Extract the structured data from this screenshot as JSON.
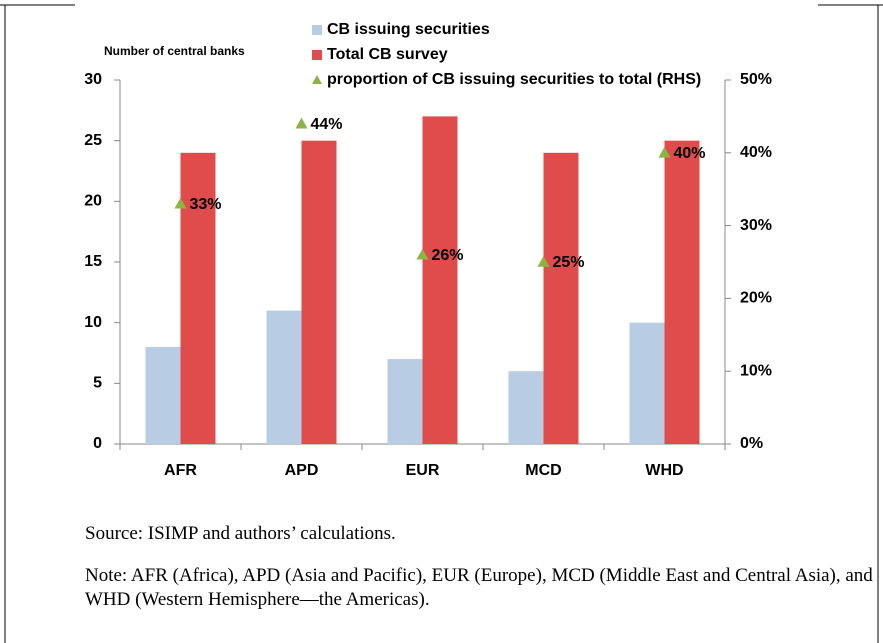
{
  "chart_data": {
    "type": "bar",
    "categories": [
      "AFR",
      "APD",
      "EUR",
      "MCD",
      "WHD"
    ],
    "y_label": "Number of central banks",
    "series": [
      {
        "name": "CB issuing securities",
        "color": "#b8cce4",
        "values": [
          8,
          11,
          7,
          6,
          10
        ]
      },
      {
        "name": "Total CB survey",
        "color": "#e04c4c",
        "values": [
          24,
          25,
          27,
          24,
          25
        ]
      },
      {
        "name": "proportion of CB issuing securities to total (RHS)",
        "type": "scatter",
        "marker": "triangle",
        "color": "#8db343",
        "axis": "y2",
        "values": [
          33,
          44,
          26,
          25,
          40
        ],
        "value_labels": [
          "33%",
          "44%",
          "26%",
          "25%",
          "40%"
        ]
      }
    ],
    "ylim": [
      0,
      30
    ],
    "yticks": [
      0,
      5,
      10,
      15,
      20,
      25,
      30
    ],
    "y2lim": [
      0,
      50
    ],
    "y2ticks": [
      {
        "value": 0,
        "label": "0%"
      },
      {
        "value": 10,
        "label": "10%"
      },
      {
        "value": 20,
        "label": "20%"
      },
      {
        "value": 30,
        "label": "30%"
      },
      {
        "value": 40,
        "label": "40%"
      },
      {
        "value": 50,
        "label": "50%"
      }
    ]
  },
  "source": "Source: ISIMP and authors’ calculations.",
  "note": "Note: AFR (Africa), APD (Asia and Pacific), EUR (Europe), MCD (Middle East and Central Asia), and WHD (Western Hemisphere—the Americas)."
}
